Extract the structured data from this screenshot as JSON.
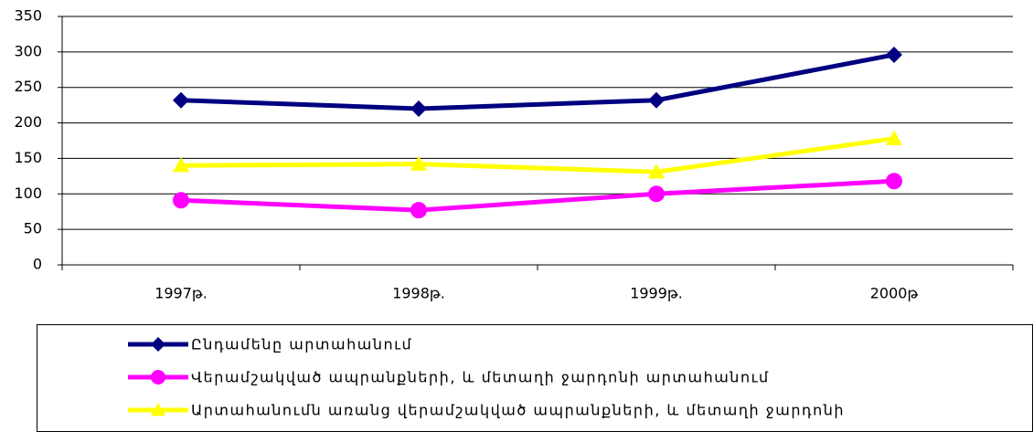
{
  "chart_data": {
    "type": "line",
    "categories": [
      "1997թ.",
      "1998թ.",
      "1999թ.",
      "2000թ"
    ],
    "series": [
      {
        "name": "Ընդամենը արտահանում",
        "color": "#000080",
        "marker": "diamond",
        "values": [
          232,
          220,
          232,
          296
        ]
      },
      {
        "name": "Վերամշակված ապրանքների, և մետաղի ջարդոնի արտահանում",
        "color": "#ff00ff",
        "marker": "circle",
        "values": [
          91,
          77,
          100,
          118
        ]
      },
      {
        "name": "Արտահանումն առանց վերամշակված ապրանքների, և մետաղի ջարդոնի",
        "color": "#ffff00",
        "marker": "triangle",
        "values": [
          140,
          142,
          131,
          178
        ]
      }
    ],
    "ylim": [
      0,
      350
    ],
    "yticks": [
      0,
      50,
      100,
      150,
      200,
      250,
      300,
      350
    ],
    "grid": true,
    "legend": "bottom"
  }
}
